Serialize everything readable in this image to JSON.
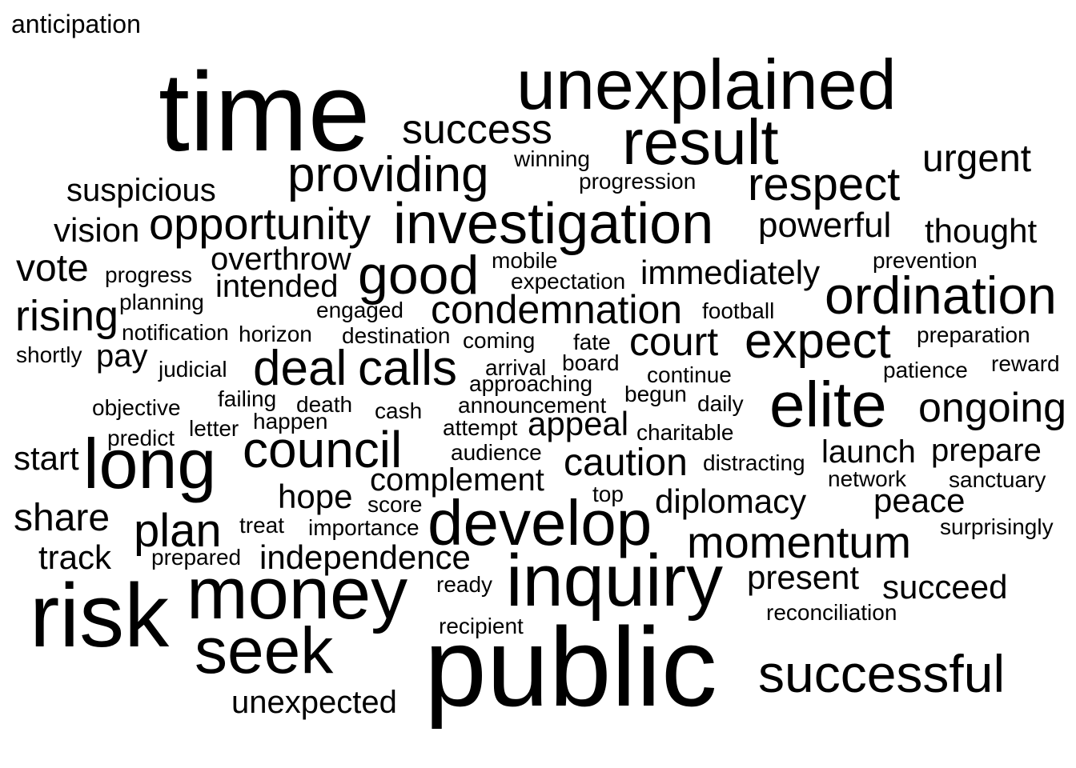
{
  "words": [
    "anticipation",
    "time",
    "unexplained",
    "success",
    "result",
    "providing",
    "winning",
    "urgent",
    "suspicious",
    "progression",
    "respect",
    "vision",
    "opportunity",
    "investigation",
    "powerful",
    "thought",
    "vote",
    "overthrow",
    "mobile",
    "prevention",
    "progress",
    "intended",
    "good",
    "expectation",
    "immediately",
    "ordination",
    "rising",
    "planning",
    "engaged",
    "condemnation",
    "football",
    "notification",
    "horizon",
    "destination",
    "coming",
    "fate",
    "court",
    "expect",
    "preparation",
    "shortly",
    "pay",
    "judicial",
    "deal",
    "calls",
    "arrival",
    "board",
    "continue",
    "patience",
    "reward",
    "elite",
    "failing",
    "approaching",
    "begun",
    "objective",
    "death",
    "announcement",
    "daily",
    "ongoing",
    "happen",
    "cash",
    "letter",
    "attempt",
    "appeal",
    "charitable",
    "predict",
    "council",
    "start",
    "audience",
    "long",
    "caution",
    "distracting",
    "launch",
    "prepare",
    "complement",
    "network",
    "sanctuary",
    "hope",
    "top",
    "diplomacy",
    "share",
    "score",
    "peace",
    "plan",
    "treat",
    "importance",
    "develop",
    "surprisingly",
    "momentum",
    "track",
    "prepared",
    "independence",
    "inquiry",
    "present",
    "ready",
    "money",
    "succeed",
    "risk",
    "reconciliation",
    "recipient",
    "seek",
    "public",
    "successful",
    "unexpected"
  ]
}
